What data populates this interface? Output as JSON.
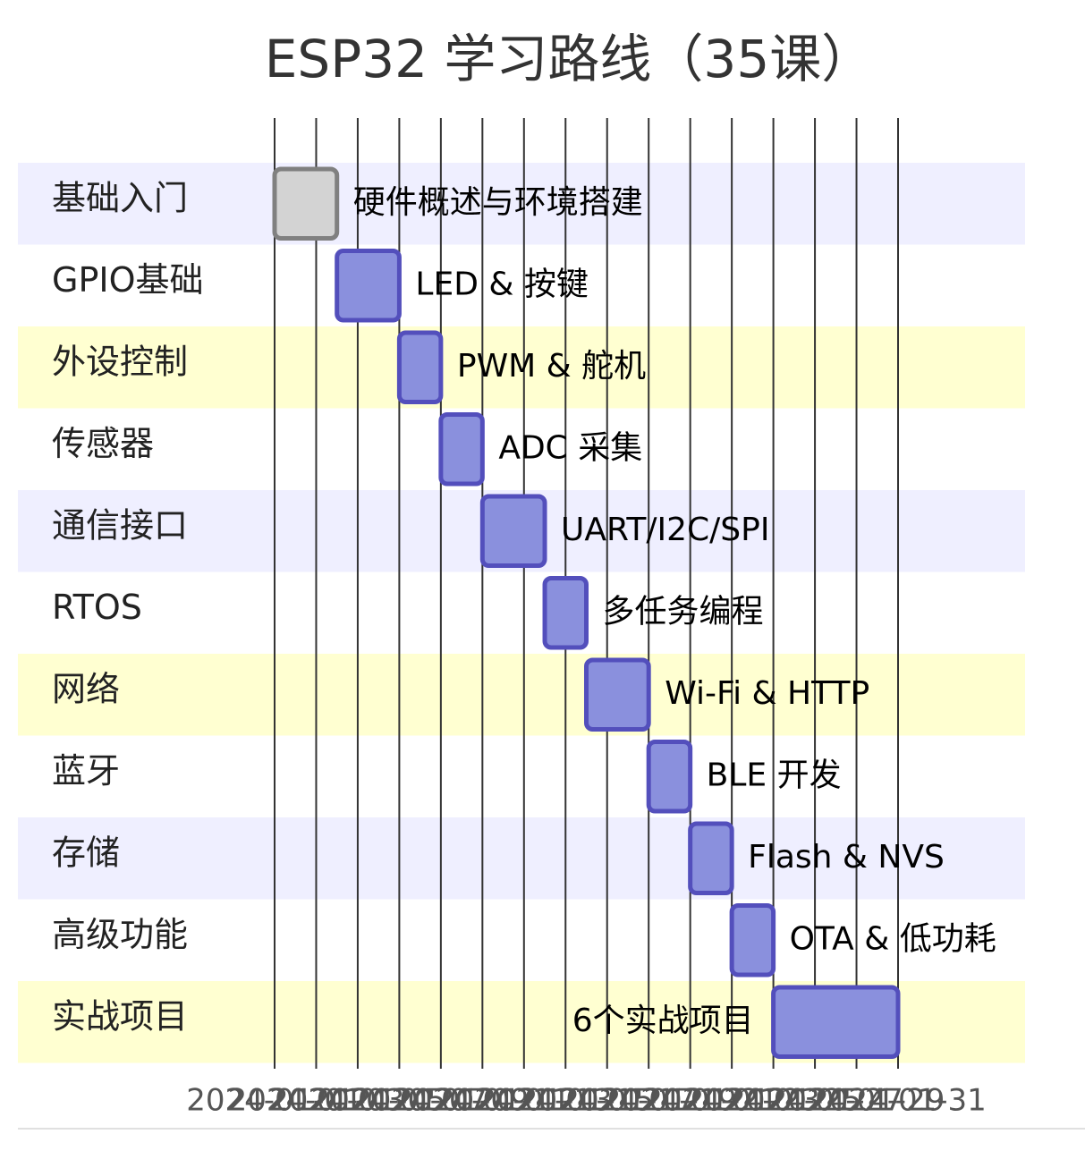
{
  "chart_data": {
    "type": "gantt",
    "title": "ESP32 学习路线（35课）",
    "xlim": [
      "2024-01-01",
      "2024-01-31"
    ],
    "xticks": [
      "2024-01-01",
      "2024-01-03",
      "2024-01-05",
      "2024-01-07",
      "2024-01-09",
      "2024-01-11",
      "2024-01-13",
      "2024-01-15",
      "2024-01-17",
      "2024-01-19",
      "2024-01-21",
      "2024-01-23",
      "2024-01-25",
      "2024-01-27",
      "2024-01-29",
      "2024-01-31"
    ],
    "section_colors": [
      "#efefff",
      "#ffffff",
      "#ffffd1",
      "#ffffff"
    ],
    "tasks": [
      {
        "section": "基础入门",
        "name": "硬件概述与环境搭建",
        "start": "2024-01-01",
        "end": "2024-01-04",
        "color": "#d3d3d3",
        "stroke": "#808080"
      },
      {
        "section": "GPIO基础",
        "name": "LED & 按键",
        "start": "2024-01-04",
        "end": "2024-01-07",
        "color": "#8a90dd",
        "stroke": "#534fbc"
      },
      {
        "section": "外设控制",
        "name": "PWM & 舵机",
        "start": "2024-01-07",
        "end": "2024-01-09",
        "color": "#8a90dd",
        "stroke": "#534fbc"
      },
      {
        "section": "传感器",
        "name": "ADC 采集",
        "start": "2024-01-09",
        "end": "2024-01-11",
        "color": "#8a90dd",
        "stroke": "#534fbc"
      },
      {
        "section": "通信接口",
        "name": "UART/I2C/SPI",
        "start": "2024-01-11",
        "end": "2024-01-14",
        "color": "#8a90dd",
        "stroke": "#534fbc"
      },
      {
        "section": "RTOS",
        "name": "多任务编程",
        "start": "2024-01-14",
        "end": "2024-01-16",
        "color": "#8a90dd",
        "stroke": "#534fbc"
      },
      {
        "section": "网络",
        "name": "Wi-Fi & HTTP",
        "start": "2024-01-16",
        "end": "2024-01-19",
        "color": "#8a90dd",
        "stroke": "#534fbc"
      },
      {
        "section": "蓝牙",
        "name": "BLE 开发",
        "start": "2024-01-19",
        "end": "2024-01-21",
        "color": "#8a90dd",
        "stroke": "#534fbc"
      },
      {
        "section": "存储",
        "name": "Flash & NVS",
        "start": "2024-01-21",
        "end": "2024-01-23",
        "color": "#8a90dd",
        "stroke": "#534fbc"
      },
      {
        "section": "高级功能",
        "name": "OTA & 低功耗",
        "start": "2024-01-23",
        "end": "2024-01-25",
        "color": "#8a90dd",
        "stroke": "#534fbc"
      },
      {
        "section": "实战项目",
        "name": "6个实战项目",
        "start": "2024-01-25",
        "end": "2024-01-31",
        "color": "#8a90dd",
        "stroke": "#534fbc"
      }
    ]
  }
}
